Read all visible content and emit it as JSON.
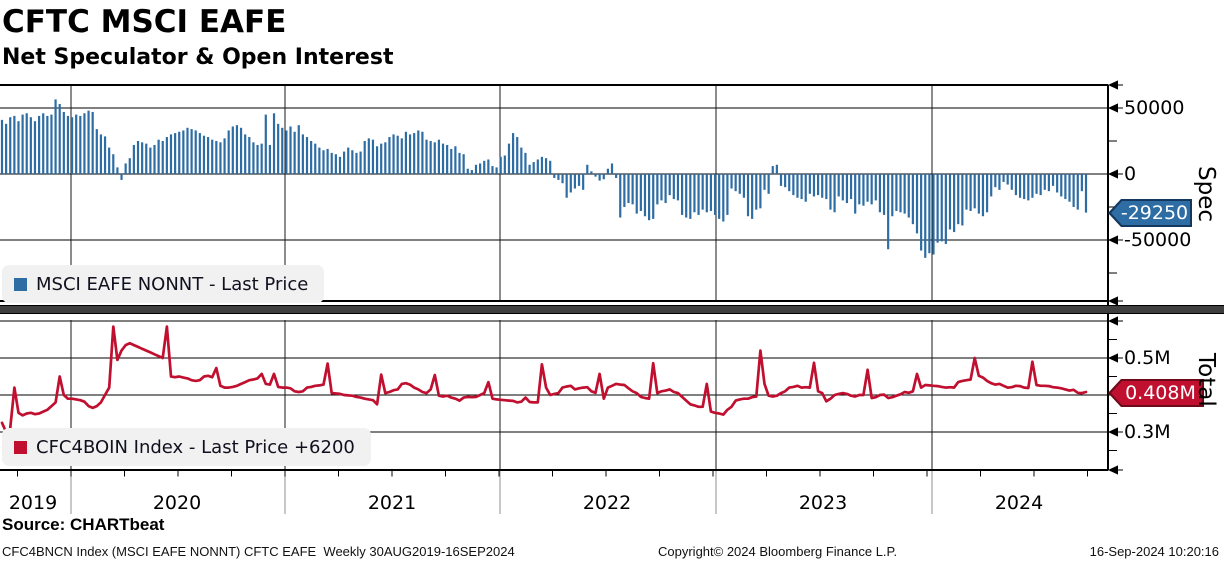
{
  "header": {
    "title": "CFTC MSCI EAFE",
    "subtitle": "Net Speculator & Open Interest"
  },
  "top_panel": {
    "legend": "MSCI EAFE NONNT - Last Price",
    "axis_label": "Spec",
    "last_value_label": "-29250",
    "y_ticks": [
      "50000",
      "0",
      "-50000"
    ],
    "accent_color": "#2e6da4"
  },
  "bottom_panel": {
    "legend": "CFC4BOIN Index - Last Price +6200",
    "axis_label": "Total",
    "last_value_label": "0.408M",
    "y_ticks": [
      "0.5M",
      "0.3M"
    ],
    "accent_color": "#c00f2f"
  },
  "x_axis": {
    "years": [
      "2019",
      "2020",
      "2021",
      "2022",
      "2023",
      "2024"
    ]
  },
  "footer": {
    "source": "Source: CHARTbeat",
    "description": "CFC4BNCN Index (MSCI EAFE NONNT) CFTC EAFE  Weekly 30AUG2019-16SEP2024",
    "copyright": "Copyright© 2024 Bloomberg Finance L.P.",
    "timestamp": "16-Sep-2024 10:20:16"
  },
  "chart_data": [
    {
      "type": "bar",
      "name": "MSCI EAFE NONNT - Last Price",
      "panel": "Spec",
      "frequency": "weekly",
      "x_range": [
        "30AUG2019",
        "16SEP2024"
      ],
      "ylim": [
        -96000,
        67000
      ],
      "y_gridlines": [
        50000,
        0,
        -50000
      ],
      "last_value": -29250,
      "values": [
        41000,
        38000,
        43000,
        44000,
        40000,
        45000,
        46000,
        43000,
        40000,
        44000,
        46000,
        44000,
        45000,
        56500,
        53000,
        47000,
        44000,
        43000,
        45000,
        44000,
        46000,
        48000,
        47000,
        34000,
        30000,
        28500,
        20000,
        15000,
        5000,
        -4500,
        8000,
        12000,
        22000,
        25000,
        24000,
        23000,
        20000,
        22000,
        26000,
        25000,
        28000,
        30000,
        31000,
        32000,
        33000,
        35000,
        34000,
        33000,
        31000,
        29000,
        28000,
        26000,
        25000,
        24000,
        27000,
        33000,
        36000,
        37000,
        35000,
        30000,
        28000,
        24000,
        22000,
        23000,
        45000,
        22000,
        46000,
        38000,
        35000,
        33000,
        36000,
        32000,
        37000,
        30000,
        28000,
        25000,
        23000,
        20000,
        18000,
        19000,
        16000,
        15000,
        13000,
        17000,
        20000,
        18000,
        16000,
        17000,
        25000,
        27000,
        26000,
        21000,
        23000,
        24000,
        28000,
        30000,
        29000,
        27000,
        32000,
        30000,
        31000,
        33000,
        32000,
        26000,
        25000,
        24000,
        26000,
        23000,
        22000,
        19000,
        21000,
        16000,
        15000,
        4000,
        3000,
        7000,
        8000,
        10000,
        11000,
        6000,
        5000,
        13000,
        14000,
        23000,
        31000,
        28000,
        20000,
        16000,
        7000,
        9000,
        11000,
        13000,
        12000,
        10000,
        -3000,
        -4500,
        -7000,
        -18000,
        -14000,
        -11000,
        -9000,
        -12000,
        7000,
        2000,
        -2000,
        -5000,
        -4000,
        4000,
        8000,
        -3000,
        -33000,
        -25000,
        -22000,
        -23000,
        -30000,
        -28000,
        -32000,
        -35000,
        -34000,
        -23000,
        -20000,
        -22000,
        -16000,
        -19000,
        -20000,
        -31000,
        -33000,
        -34000,
        -29000,
        -31000,
        -27000,
        -29000,
        -28000,
        -31000,
        -34000,
        -36000,
        -31000,
        -11000,
        -13000,
        -15000,
        -18000,
        -32000,
        -34000,
        -27000,
        -26000,
        -12000,
        -15000,
        6000,
        7000,
        -9000,
        -10000,
        -13000,
        -16000,
        -18000,
        -19000,
        -21000,
        -15000,
        -17000,
        -16000,
        -18000,
        -19000,
        -27000,
        -29000,
        -17000,
        -20000,
        -22000,
        -19000,
        -30000,
        -23000,
        -24000,
        -21000,
        -23000,
        -20000,
        -29000,
        -31000,
        -57000,
        -32000,
        -28000,
        -29000,
        -30000,
        -33000,
        -38000,
        -45000,
        -58000,
        -63500,
        -60000,
        -61000,
        -52000,
        -51000,
        -53000,
        -42000,
        -44000,
        -38000,
        -39000,
        -27000,
        -28000,
        -26000,
        -30000,
        -32000,
        -29000,
        -17000,
        -10000,
        -12000,
        -6000,
        -8000,
        -12000,
        -16000,
        -18000,
        -19000,
        -20000,
        -18000,
        -15000,
        -16000,
        -12000,
        -13000,
        -9000,
        -14000,
        -17000,
        -19000,
        -21000,
        -25000,
        -27000,
        -13000,
        -29250
      ]
    },
    {
      "type": "line",
      "name": "CFC4BOIN Index - Last Price +6200",
      "panel": "Total",
      "frequency": "weekly",
      "unit": "millions",
      "x_range": [
        "30AUG2019",
        "16SEP2024"
      ],
      "ylim": [
        0.2,
        0.61
      ],
      "y_gridlines": [
        0.6,
        0.5,
        0.4,
        0.3
      ],
      "last_value": 0.408,
      "values": [
        0.325,
        0.3,
        0.31,
        0.42,
        0.352,
        0.345,
        0.35,
        0.352,
        0.348,
        0.35,
        0.355,
        0.36,
        0.37,
        0.38,
        0.45,
        0.4,
        0.39,
        0.39,
        0.388,
        0.386,
        0.382,
        0.37,
        0.365,
        0.37,
        0.38,
        0.4,
        0.42,
        0.585,
        0.495,
        0.52,
        0.535,
        0.54,
        0.535,
        0.53,
        0.525,
        0.52,
        0.515,
        0.51,
        0.505,
        0.5,
        0.585,
        0.45,
        0.448,
        0.45,
        0.447,
        0.445,
        0.44,
        0.438,
        0.44,
        0.45,
        0.452,
        0.448,
        0.473,
        0.425,
        0.42,
        0.42,
        0.422,
        0.425,
        0.43,
        0.435,
        0.44,
        0.442,
        0.445,
        0.457,
        0.43,
        0.428,
        0.457,
        0.422,
        0.42,
        0.42,
        0.418,
        0.41,
        0.408,
        0.41,
        0.42,
        0.422,
        0.425,
        0.426,
        0.428,
        0.485,
        0.405,
        0.404,
        0.403,
        0.4,
        0.399,
        0.398,
        0.395,
        0.393,
        0.39,
        0.388,
        0.386,
        0.375,
        0.455,
        0.405,
        0.408,
        0.413,
        0.415,
        0.43,
        0.432,
        0.428,
        0.42,
        0.415,
        0.408,
        0.405,
        0.415,
        0.454,
        0.398,
        0.396,
        0.398,
        0.393,
        0.39,
        0.385,
        0.393,
        0.395,
        0.394,
        0.395,
        0.4,
        0.405,
        0.435,
        0.39,
        0.388,
        0.387,
        0.386,
        0.385,
        0.384,
        0.38,
        0.382,
        0.393,
        0.381,
        0.38,
        0.38,
        0.483,
        0.42,
        0.4,
        0.403,
        0.405,
        0.42,
        0.423,
        0.425,
        0.415,
        0.418,
        0.42,
        0.421,
        0.41,
        0.406,
        0.457,
        0.39,
        0.42,
        0.425,
        0.43,
        0.428,
        0.427,
        0.418,
        0.41,
        0.405,
        0.395,
        0.392,
        0.39,
        0.486,
        0.405,
        0.41,
        0.412,
        0.415,
        0.408,
        0.405,
        0.395,
        0.385,
        0.375,
        0.372,
        0.368,
        0.368,
        0.43,
        0.355,
        0.352,
        0.35,
        0.347,
        0.36,
        0.368,
        0.385,
        0.388,
        0.39,
        0.39,
        0.394,
        0.396,
        0.52,
        0.43,
        0.398,
        0.396,
        0.398,
        0.405,
        0.41,
        0.42,
        0.422,
        0.425,
        0.42,
        0.421,
        0.42,
        0.487,
        0.41,
        0.405,
        0.383,
        0.39,
        0.4,
        0.403,
        0.405,
        0.403,
        0.398,
        0.396,
        0.4,
        0.4,
        0.468,
        0.392,
        0.394,
        0.4,
        0.401,
        0.392,
        0.394,
        0.398,
        0.402,
        0.408,
        0.406,
        0.41,
        0.457,
        0.42,
        0.427,
        0.426,
        0.425,
        0.424,
        0.422,
        0.42,
        0.421,
        0.42,
        0.435,
        0.438,
        0.44,
        0.442,
        0.5,
        0.452,
        0.447,
        0.438,
        0.432,
        0.428,
        0.43,
        0.425,
        0.42,
        0.421,
        0.425,
        0.424,
        0.42,
        0.419,
        0.49,
        0.427,
        0.425,
        0.425,
        0.424,
        0.421,
        0.42,
        0.418,
        0.415,
        0.412,
        0.414,
        0.406,
        0.405,
        0.408
      ]
    }
  ]
}
